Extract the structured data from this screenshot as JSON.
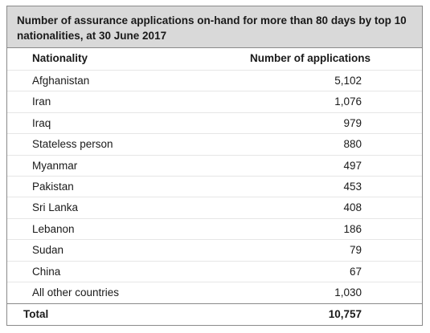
{
  "title": "Number of assurance applications on-hand for more than 80 days by top 10 nationalities, at 30 June 2017",
  "headers": {
    "nationality": "Nationality",
    "applications": "Number of applications"
  },
  "rows": [
    {
      "nationality": "Afghanistan",
      "applications": "5,102"
    },
    {
      "nationality": "Iran",
      "applications": "1,076"
    },
    {
      "nationality": "Iraq",
      "applications": "979"
    },
    {
      "nationality": "Stateless person",
      "applications": "880"
    },
    {
      "nationality": "Myanmar",
      "applications": "497"
    },
    {
      "nationality": "Pakistan",
      "applications": "453"
    },
    {
      "nationality": "Sri Lanka",
      "applications": "408"
    },
    {
      "nationality": "Lebanon",
      "applications": "186"
    },
    {
      "nationality": "Sudan",
      "applications": "79"
    },
    {
      "nationality": "China",
      "applications": "67"
    },
    {
      "nationality": "All other countries",
      "applications": "1,030"
    }
  ],
  "total": {
    "label": "Total",
    "applications": "10,757"
  },
  "colors": {
    "caption_background": "#d9d9d9",
    "border": "#8a8a8a",
    "row_divider": "#e6e6e6"
  }
}
